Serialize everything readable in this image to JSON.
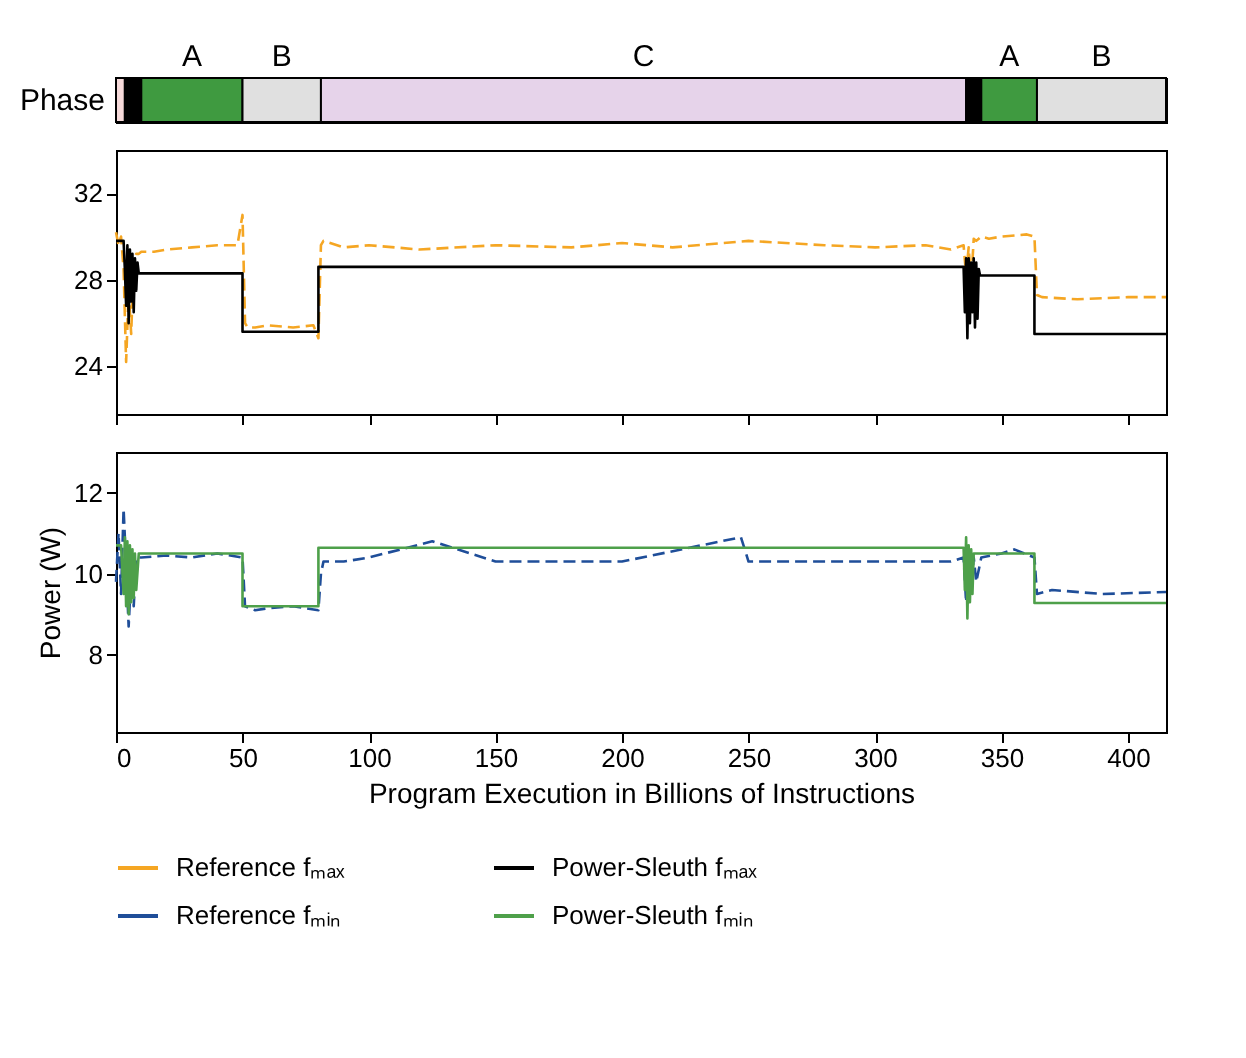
{
  "chart_data": [
    {
      "type": "bar",
      "orientation": "horizontal",
      "stacked": true,
      "categories": [
        "Phase"
      ],
      "xlim": [
        0,
        415
      ],
      "tick_labels": "y",
      "legend": false,
      "series": [
        {
          "color": "#f6dada",
          "values": [
            3.5
          ]
        },
        {
          "color": "#000000",
          "values": [
            6.5
          ]
        },
        {
          "name": "A",
          "color": "#3f9a40",
          "values": [
            40
          ]
        },
        {
          "name": "B",
          "color": "#e0e0e0",
          "values": [
            31
          ]
        },
        {
          "name": "C",
          "color": "#e6d3ea",
          "values": [
            255
          ]
        },
        {
          "color": "#000000",
          "values": [
            6
          ]
        },
        {
          "name": "A",
          "color": "#3f9a40",
          "values": [
            22
          ]
        },
        {
          "name": "B",
          "color": "#e0e0e0",
          "values": [
            51
          ]
        }
      ]
    },
    {
      "type": "line",
      "xlim": [
        0,
        415
      ],
      "xticks": [
        0,
        50,
        100,
        150,
        200,
        250,
        300,
        350,
        400
      ],
      "ylim": [
        21.8,
        34
      ],
      "yticks": [
        24,
        28,
        32
      ],
      "tick_labels": "y",
      "legend": "bottom",
      "series": [
        {
          "name": "Reference fₘₐₓ",
          "color": "#f5a623",
          "line_style": "dashed",
          "x": [
            0,
            1,
            2,
            3,
            4,
            5,
            6,
            7,
            8,
            9,
            10,
            15,
            20,
            30,
            40,
            48,
            50,
            51,
            52,
            55,
            60,
            70,
            78,
            80,
            81,
            82,
            90,
            100,
            120,
            150,
            180,
            200,
            220,
            250,
            280,
            300,
            320,
            330,
            335,
            336,
            337,
            338,
            339,
            340,
            341,
            342,
            345,
            350,
            360,
            363,
            364,
            366,
            380,
            400,
            415
          ],
          "values": [
            30.2,
            29.6,
            30.0,
            28.5,
            24.2,
            27.5,
            25.5,
            28.8,
            29.2,
            29.2,
            29.3,
            29.3,
            29.4,
            29.5,
            29.6,
            29.6,
            31.0,
            26.0,
            25.8,
            25.8,
            25.9,
            25.8,
            25.9,
            25.3,
            29.6,
            29.8,
            29.5,
            29.6,
            29.4,
            29.6,
            29.5,
            29.7,
            29.5,
            29.8,
            29.6,
            29.5,
            29.6,
            29.4,
            29.6,
            28.2,
            29.5,
            27.8,
            29.9,
            29.8,
            29.9,
            30.0,
            29.9,
            30.0,
            30.1,
            30.0,
            27.3,
            27.2,
            27.1,
            27.2,
            27.2
          ]
        },
        {
          "name": "Power-Sleuth fₘₐₓ",
          "color": "#000000",
          "line_style": "solid",
          "x": [
            0,
            3,
            3.5,
            4,
            4.5,
            5,
            5.5,
            6,
            6.5,
            7,
            7.5,
            8,
            8.5,
            9,
            9.5,
            10,
            50,
            50,
            80,
            80,
            335,
            335.5,
            336,
            336.5,
            337,
            337.5,
            338,
            338.5,
            339,
            339.5,
            340,
            340.5,
            341,
            341.5,
            342,
            363,
            363,
            415
          ],
          "values": [
            29.8,
            29.8,
            28.5,
            26.8,
            29.6,
            26.0,
            29.4,
            27.0,
            29.2,
            26.5,
            29.0,
            27.5,
            28.8,
            28.3,
            28.3,
            28.3,
            28.3,
            25.6,
            25.6,
            28.6,
            28.6,
            26.5,
            29.0,
            25.3,
            29.0,
            26.0,
            28.8,
            26.5,
            29.0,
            25.8,
            28.8,
            26.2,
            28.5,
            28.2,
            28.2,
            28.2,
            25.5,
            25.5
          ]
        }
      ]
    },
    {
      "type": "line",
      "xlabel": "Program Execution in Billions of Instructions",
      "ylabel": "Power (W)",
      "xlim": [
        0,
        415
      ],
      "xticks": [
        0,
        50,
        100,
        150,
        200,
        250,
        300,
        350,
        400
      ],
      "ylim": [
        6.1,
        13
      ],
      "yticks": [
        8,
        10,
        12
      ],
      "legend": "bottom",
      "series": [
        {
          "name": "Reference fₘᵢₙ",
          "color": "#1f4e99",
          "line_style": "dashed",
          "x": [
            0,
            1,
            2,
            3,
            4,
            5,
            6,
            7,
            8,
            9,
            10,
            20,
            30,
            40,
            50,
            51,
            55,
            60,
            70,
            80,
            81,
            82,
            90,
            100,
            125,
            150,
            200,
            247,
            250,
            300,
            330,
            335,
            336,
            337,
            338,
            339,
            340,
            342,
            350,
            355,
            363,
            364,
            370,
            390,
            415
          ],
          "values": [
            9.8,
            11.0,
            9.5,
            11.6,
            10.2,
            8.7,
            10.0,
            9.2,
            10.4,
            10.4,
            10.4,
            10.45,
            10.4,
            10.5,
            10.4,
            9.2,
            9.1,
            9.15,
            9.2,
            9.1,
            10.0,
            10.3,
            10.3,
            10.4,
            10.8,
            10.3,
            10.3,
            10.9,
            10.3,
            10.3,
            10.3,
            10.4,
            9.3,
            10.5,
            9.6,
            10.4,
            9.8,
            10.4,
            10.5,
            10.6,
            10.4,
            9.5,
            9.6,
            9.5,
            9.55
          ]
        },
        {
          "name": "Power-Sleuth fₘᵢₙ",
          "color": "#4ea04a",
          "line_style": "solid",
          "x": [
            0,
            2,
            3,
            3.5,
            4,
            4.5,
            5,
            5.5,
            6,
            6.5,
            7,
            7.5,
            8,
            9,
            50,
            50,
            80,
            80,
            335,
            335.5,
            336,
            336.5,
            337,
            337.5,
            338,
            338.5,
            339,
            340,
            363,
            363,
            415
          ],
          "values": [
            10.7,
            10.7,
            9.5,
            10.9,
            9.2,
            10.8,
            9.0,
            10.7,
            9.3,
            10.6,
            9.4,
            10.5,
            9.6,
            10.5,
            10.5,
            9.2,
            9.2,
            10.64,
            10.64,
            9.6,
            10.9,
            8.9,
            10.7,
            9.3,
            10.6,
            9.5,
            10.5,
            10.5,
            10.5,
            9.28,
            9.28
          ]
        }
      ]
    }
  ]
}
